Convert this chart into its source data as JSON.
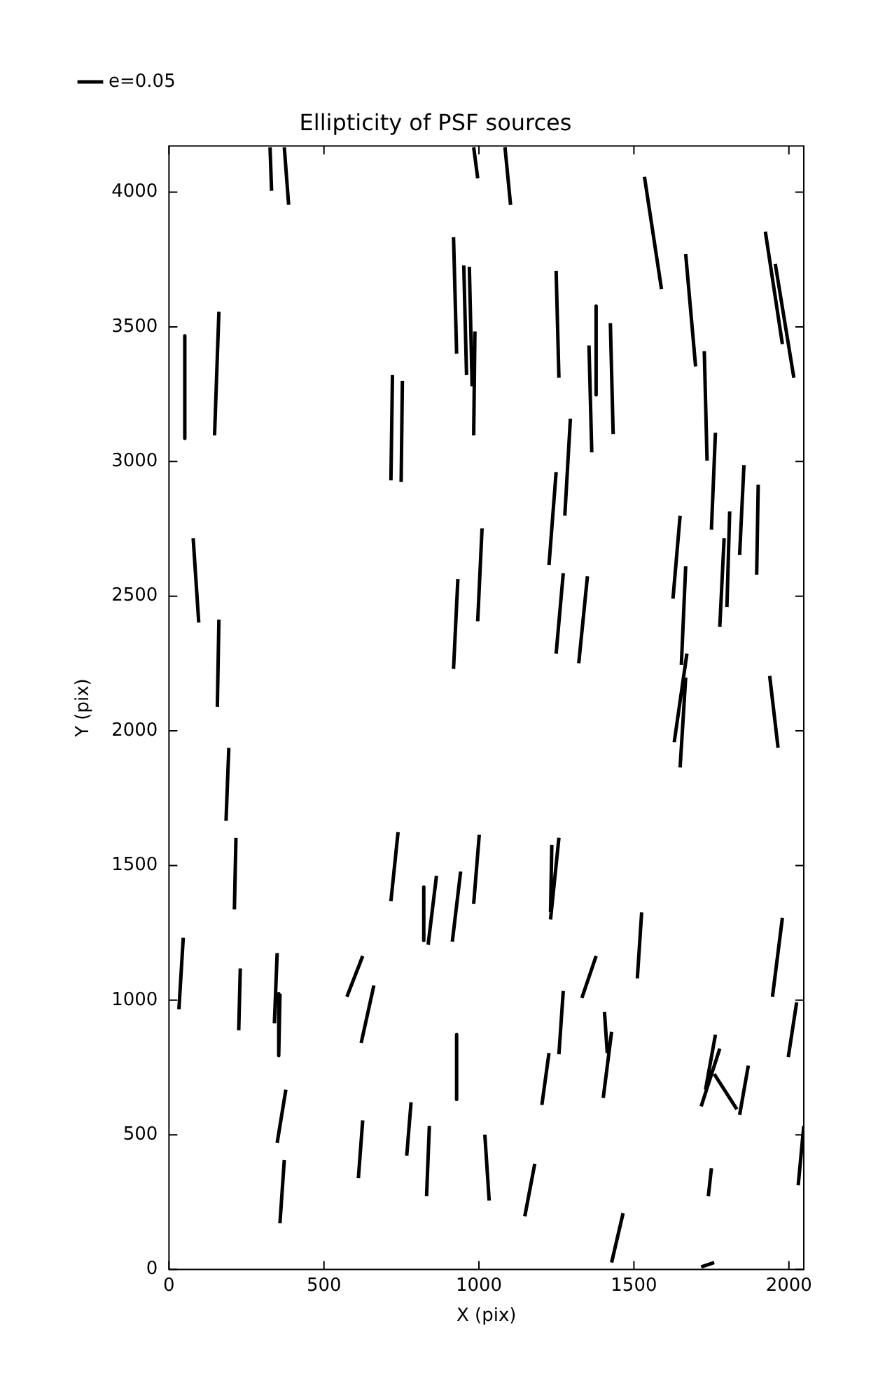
{
  "chart_data": {
    "type": "line",
    "title": "Ellipticity of PSF sources",
    "xlabel": "X (pix)",
    "ylabel": "Y (pix)",
    "xlim": [
      0,
      2048
    ],
    "ylim": [
      0,
      4172
    ],
    "xticks": [
      0,
      500,
      1000,
      1500,
      2000
    ],
    "yticks": [
      0,
      500,
      1000,
      1500,
      2000,
      2500,
      3000,
      3500,
      4000
    ],
    "grid": false,
    "legend": "top left",
    "marker": "none",
    "line_style": "solid",
    "series": [
      {
        "name": "e=0.05",
        "color": "#000000",
        "x": [
          326,
          331,
          null,
          372,
          386,
          null,
          983,
          996,
          null,
          1084,
          1102,
          null,
          51,
          51,
          null,
          161,
          147,
          null,
          721,
          716,
          null,
          753,
          749,
          null,
          918,
          928,
          null,
          951,
          960,
          null,
          969,
          978,
          null,
          987,
          983,
          null,
          1249,
          1258,
          null,
          1534,
          1589,
          null,
          1667,
          1699,
          null,
          1924,
          1979,
          null,
          1956,
          2016,
          null,
          1378,
          1378,
          null,
          1355,
          1364,
          null,
          1424,
          1433,
          null,
          1295,
          1277,
          null,
          1249,
          1226,
          null,
          1727,
          1736,
          null,
          1763,
          1750,
          null,
          1649,
          1626,
          null,
          1809,
          1800,
          null,
          1855,
          1841,
          null,
          1901,
          1896,
          null,
          1791,
          1777,
          null,
          1010,
          996,
          null,
          932,
          918,
          null,
          1272,
          1249,
          null,
          1350,
          1322,
          null,
          1667,
          1653,
          null,
          1671,
          1630,
          null,
          1667,
          1649,
          null,
          1938,
          1965,
          null,
          78,
          96,
          null,
          161,
          156,
          null,
          193,
          184,
          null,
          216,
          211,
          null,
          739,
          716,
          null,
          822,
          822,
          null,
          863,
          836,
          null,
          941,
          914,
          null,
          1001,
          983,
          null,
          1258,
          1231,
          null,
          1235,
          1231,
          null,
          46,
          32,
          null,
          230,
          225,
          null,
          349,
          340,
          null,
          358,
          354,
          null,
          625,
          574,
          null,
          661,
          620,
          null,
          928,
          928,
          null,
          377,
          349,
          null,
          625,
          611,
          null,
          781,
          767,
          null,
          840,
          831,
          null,
          1019,
          1033,
          null,
          372,
          358,
          null,
          1525,
          1511,
          null,
          1979,
          1947,
          null,
          1378,
          1332,
          null,
          1272,
          1258,
          null,
          1405,
          1414,
          null,
          1428,
          1401,
          null,
          1226,
          1203,
          null,
          2025,
          1998,
          null,
          1763,
          1731,
          null,
          1777,
          1717,
          null,
          1759,
          1832,
          null,
          1869,
          1841,
          null,
          1180,
          1148,
          null,
          1750,
          1740,
          null,
          1465,
          1428,
          null,
          1759,
          1717,
          null,
          2048,
          2030
        ],
        "values": [
          4167,
          4005,
          null,
          4167,
          3953,
          null,
          4167,
          4052,
          null,
          4167,
          3953,
          null,
          3467,
          3086,
          null,
          3556,
          3097,
          null,
          3321,
          2930,
          null,
          3300,
          2924,
          null,
          3833,
          3400,
          null,
          3728,
          3321,
          null,
          3723,
          3279,
          null,
          3483,
          3097,
          null,
          3708,
          3311,
          null,
          4057,
          3640,
          null,
          3770,
          3353,
          null,
          3854,
          3436,
          null,
          3734,
          3311,
          null,
          3577,
          3248,
          null,
          3431,
          3034,
          null,
          3514,
          3102,
          null,
          3159,
          2799,
          null,
          2961,
          2616,
          null,
          3410,
          3003,
          null,
          3107,
          2747,
          null,
          2799,
          2491,
          null,
          2815,
          2460,
          null,
          2987,
          2653,
          null,
          2914,
          2580,
          null,
          2715,
          2386,
          null,
          2752,
          2407,
          null,
          2564,
          2230,
          null,
          2585,
          2287,
          null,
          2574,
          2251,
          null,
          2611,
          2245,
          null,
          2287,
          1958,
          null,
          2198,
          1864,
          null,
          2204,
          1937,
          null,
          2715,
          2402,
          null,
          2413,
          2089,
          null,
          1937,
          1666,
          null,
          1603,
          1337,
          null,
          1624,
          1368,
          null,
          1420,
          1222,
          null,
          1462,
          1206,
          null,
          1478,
          1217,
          null,
          1614,
          1358,
          null,
          1603,
          1300,
          null,
          1577,
          1326,
          null,
          1232,
          966,
          null,
          1118,
          888,
          null,
          1175,
          914,
          null,
          1024,
          794,
          null,
          1164,
          1013,
          null,
          1055,
          841,
          null,
          872,
          632,
          null,
          668,
          470,
          null,
          554,
          339,
          null,
          621,
          423,
          null,
          533,
          272,
          null,
          501,
          256,
          null,
          407,
          172,
          null,
          1326,
          1081,
          null,
          1306,
          1013,
          null,
          1164,
          1008,
          null,
          1034,
          799,
          null,
          956,
          804,
          null,
          883,
          637,
          null,
          804,
          611,
          null,
          992,
          789,
          null,
          872,
          668,
          null,
          820,
          606,
          null,
          726,
          595,
          null,
          757,
          574,
          null,
          392,
          198,
          null,
          376,
          272,
          null,
          209,
          26,
          null,
          26,
          10,
          null,
          533,
          313
        ]
      }
    ]
  }
}
